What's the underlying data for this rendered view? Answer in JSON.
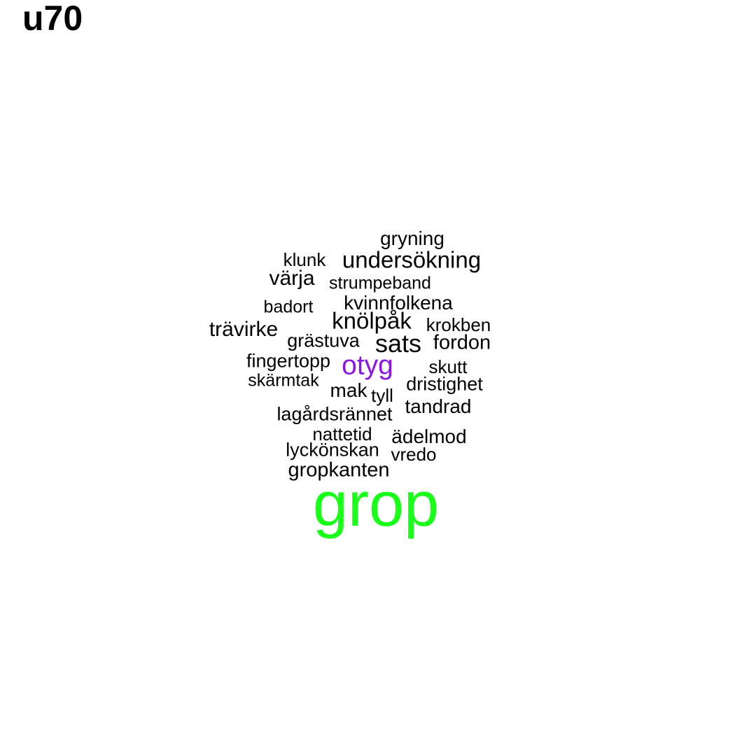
{
  "title": "u70",
  "colors": {
    "default": "#000000",
    "top": "#1aff1a",
    "second": "#8a14e6"
  },
  "words": [
    {
      "id": "grop",
      "text": "grop",
      "color": "top"
    },
    {
      "id": "otyg",
      "text": "otyg",
      "color": "second"
    },
    {
      "id": "gryning",
      "text": "gryning",
      "color": "default"
    },
    {
      "id": "klunk",
      "text": "klunk",
      "color": "default"
    },
    {
      "id": "undersokning",
      "text": "undersökning",
      "color": "default"
    },
    {
      "id": "varja",
      "text": "värja",
      "color": "default"
    },
    {
      "id": "strumpeband",
      "text": "strumpeband",
      "color": "default"
    },
    {
      "id": "badort",
      "text": "badort",
      "color": "default"
    },
    {
      "id": "kvinnfolkena",
      "text": "kvinnfolkena",
      "color": "default"
    },
    {
      "id": "knolpak",
      "text": "knölpåk",
      "color": "default"
    },
    {
      "id": "krokben",
      "text": "krokben",
      "color": "default"
    },
    {
      "id": "travirke",
      "text": "trävirke",
      "color": "default"
    },
    {
      "id": "grastuva",
      "text": "grästuva",
      "color": "default"
    },
    {
      "id": "sats",
      "text": "sats",
      "color": "default"
    },
    {
      "id": "fordon",
      "text": "fordon",
      "color": "default"
    },
    {
      "id": "fingertopp",
      "text": "fingertopp",
      "color": "default"
    },
    {
      "id": "skutt",
      "text": "skutt",
      "color": "default"
    },
    {
      "id": "skarmtak",
      "text": "skärmtak",
      "color": "default"
    },
    {
      "id": "dristighet",
      "text": "dristighet",
      "color": "default"
    },
    {
      "id": "mak",
      "text": "mak",
      "color": "default"
    },
    {
      "id": "tyll",
      "text": "tyll",
      "color": "default"
    },
    {
      "id": "tandrad",
      "text": "tandrad",
      "color": "default"
    },
    {
      "id": "lagardsrannet",
      "text": "lagårdsrännet",
      "color": "default"
    },
    {
      "id": "nattetid",
      "text": "nattetid",
      "color": "default"
    },
    {
      "id": "adelmod",
      "text": "ädelmod",
      "color": "default"
    },
    {
      "id": "lyckonskan",
      "text": "lyckönskan",
      "color": "default"
    },
    {
      "id": "vredo",
      "text": "vredo",
      "color": "default"
    },
    {
      "id": "gropkanten",
      "text": "gropkanten",
      "color": "default"
    }
  ]
}
